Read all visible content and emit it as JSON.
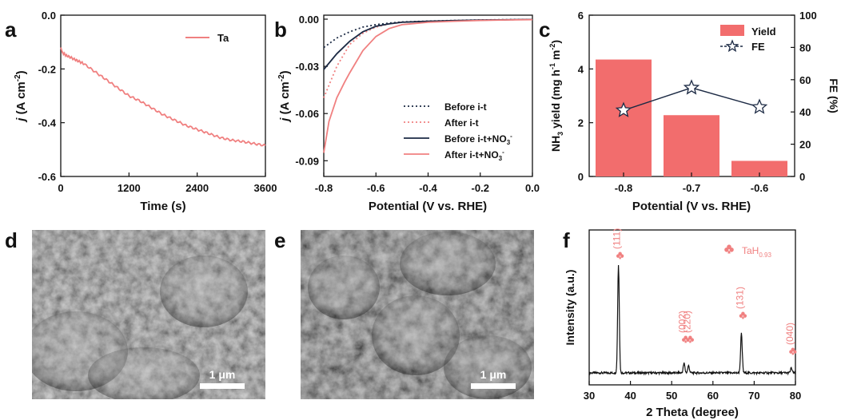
{
  "panels": {
    "a": "a",
    "b": "b",
    "c": "c",
    "d": "d",
    "e": "e",
    "f": "f"
  },
  "chart_data": [
    {
      "panel": "a",
      "type": "line",
      "xlabel": "Time (s)",
      "ylabel": "j (A cm-2)",
      "ylabel_italic": "j",
      "ylabel_main": " (A cm",
      "ylabel_sup": "-2",
      "ylabel_end": ")",
      "xlim": [
        0,
        3600
      ],
      "ylim": [
        -0.6,
        0.0
      ],
      "xticks": [
        0,
        1200,
        2400,
        3600
      ],
      "yticks": [
        0.0,
        -0.2,
        -0.4,
        -0.6
      ],
      "xtick_labels": [
        "0",
        "1200",
        "2400",
        "3600"
      ],
      "ytick_labels": [
        "0.0",
        "-0.2",
        "-0.4",
        "-0.6"
      ],
      "legend_position": "top-right",
      "series": [
        {
          "name": "Ta",
          "color": "#f08080",
          "x": [
            0,
            30,
            100,
            200,
            300,
            400,
            600,
            800,
            1000,
            1200,
            1400,
            1600,
            1800,
            2000,
            2200,
            2400,
            2600,
            2800,
            3000,
            3200,
            3400,
            3600
          ],
          "y": [
            -0.12,
            -0.14,
            -0.15,
            -0.16,
            -0.17,
            -0.18,
            -0.21,
            -0.24,
            -0.27,
            -0.3,
            -0.32,
            -0.345,
            -0.37,
            -0.39,
            -0.41,
            -0.425,
            -0.44,
            -0.455,
            -0.465,
            -0.47,
            -0.478,
            -0.485
          ]
        }
      ]
    },
    {
      "panel": "b",
      "type": "line",
      "xlabel": "Potential (V vs. RHE)",
      "ylabel": "j (A cm-2)",
      "ylabel_italic": "j",
      "ylabel_main": " (A cm",
      "ylabel_sup": "-2",
      "ylabel_end": ")",
      "xlim": [
        -0.8,
        0.0
      ],
      "ylim": [
        -0.1,
        0.0
      ],
      "xticks": [
        -0.8,
        -0.6,
        -0.4,
        -0.2,
        0.0
      ],
      "yticks": [
        0.0,
        -0.03,
        -0.06,
        -0.09
      ],
      "xtick_labels": [
        "-0.8",
        "-0.6",
        "-0.4",
        "-0.2",
        "0.0"
      ],
      "ytick_labels": [
        "0.00",
        "-0.03",
        "-0.06",
        "-0.09"
      ],
      "legend_position": "bottom-right",
      "series": [
        {
          "name": "Before i-t",
          "label_main": "Before i-t",
          "color": "#1c2a44",
          "style": "dotted",
          "x": [
            -0.8,
            -0.75,
            -0.7,
            -0.65,
            -0.6,
            -0.55,
            -0.5,
            -0.4,
            -0.3,
            -0.2,
            -0.1,
            0.0
          ],
          "y": [
            -0.018,
            -0.012,
            -0.008,
            -0.005,
            -0.0035,
            -0.0025,
            -0.0018,
            -0.0012,
            -0.0008,
            -0.0005,
            -0.0003,
            -0.0002
          ]
        },
        {
          "name": "After i-t",
          "label_main": "After i-t",
          "color": "#f08080",
          "style": "dotted",
          "x": [
            -0.8,
            -0.75,
            -0.7,
            -0.65,
            -0.6,
            -0.55,
            -0.5,
            -0.4,
            -0.3,
            -0.2,
            -0.1,
            0.0
          ],
          "y": [
            -0.05,
            -0.03,
            -0.016,
            -0.009,
            -0.005,
            -0.003,
            -0.002,
            -0.0013,
            -0.0009,
            -0.0006,
            -0.0004,
            -0.0002
          ]
        },
        {
          "name": "Before i-t+NO3-",
          "label_main": "Before i-t+NO",
          "label_sub": "3",
          "label_sup": "-",
          "color": "#1c2a44",
          "style": "solid",
          "x": [
            -0.8,
            -0.75,
            -0.7,
            -0.65,
            -0.6,
            -0.55,
            -0.5,
            -0.4,
            -0.3,
            -0.2,
            -0.1,
            0.0
          ],
          "y": [
            -0.032,
            -0.022,
            -0.014,
            -0.008,
            -0.0045,
            -0.003,
            -0.002,
            -0.0013,
            -0.0009,
            -0.0006,
            -0.0004,
            -0.0002
          ]
        },
        {
          "name": "After i-t+NO3-",
          "label_main": "After i-t+NO",
          "label_sub": "3",
          "label_sup": "-",
          "color": "#f08080",
          "style": "solid",
          "x": [
            -0.8,
            -0.78,
            -0.75,
            -0.72,
            -0.7,
            -0.65,
            -0.6,
            -0.55,
            -0.5,
            -0.4,
            -0.3,
            -0.2,
            -0.1,
            0.0
          ],
          "y": [
            -0.085,
            -0.065,
            -0.05,
            -0.04,
            -0.034,
            -0.02,
            -0.011,
            -0.006,
            -0.0035,
            -0.002,
            -0.0013,
            -0.0008,
            -0.0005,
            -0.0003
          ]
        }
      ]
    },
    {
      "panel": "c",
      "type": "bar",
      "categories": [
        "-0.8",
        "-0.7",
        "-0.6"
      ],
      "xlabel": "Potential (V vs. RHE)",
      "ylabel": "NH3 yield (mg h-1 m-2)",
      "ylabel_parts": [
        "NH",
        "3",
        " yield (mg h",
        "-1",
        " m",
        "-2",
        ")"
      ],
      "y2label": "FE (%)",
      "ylim": [
        0,
        6
      ],
      "y2lim": [
        0,
        100
      ],
      "yticks": [
        0,
        2,
        4,
        6
      ],
      "y2ticks": [
        0,
        20,
        40,
        60,
        80,
        100
      ],
      "legend_position": "top-right",
      "series": [
        {
          "name": "Yield",
          "kind": "bar",
          "color": "#f26d6d",
          "values": [
            4.35,
            2.28,
            0.58
          ]
        },
        {
          "name": "FE",
          "kind": "line",
          "axis": "right",
          "color": "#1c2a44",
          "values": [
            41,
            55,
            43
          ]
        }
      ]
    },
    {
      "panel": "f",
      "type": "line",
      "xlabel": "2 Theta (degree)",
      "ylabel": "Intensity (a.u.)",
      "xlim": [
        30,
        80
      ],
      "xticks": [
        30,
        40,
        50,
        60,
        70,
        80
      ],
      "xtick_labels": [
        "30",
        "40",
        "50",
        "60",
        "70",
        "80"
      ],
      "legend_position": "top-right",
      "legend_text": "TaH",
      "legend_sub": "0.93",
      "annotations": [
        {
          "label": "(111)",
          "x": 37.1,
          "h": 0.9
        },
        {
          "label": "(002)",
          "x": 53.0,
          "h": 0.2
        },
        {
          "label": "(220)",
          "x": 54.1,
          "h": 0.2
        },
        {
          "label": "(131)",
          "x": 66.9,
          "h": 0.4
        },
        {
          "label": "(040)",
          "x": 79.0,
          "h": 0.1
        }
      ],
      "peaks": [
        {
          "x": 37.1,
          "h": 0.9
        },
        {
          "x": 53.0,
          "h": 0.08
        },
        {
          "x": 54.1,
          "h": 0.06
        },
        {
          "x": 66.9,
          "h": 0.33
        },
        {
          "x": 79.0,
          "h": 0.04
        }
      ]
    }
  ],
  "images": {
    "d": {
      "scale": "1 μm"
    },
    "e": {
      "scale": "1 μm"
    }
  }
}
